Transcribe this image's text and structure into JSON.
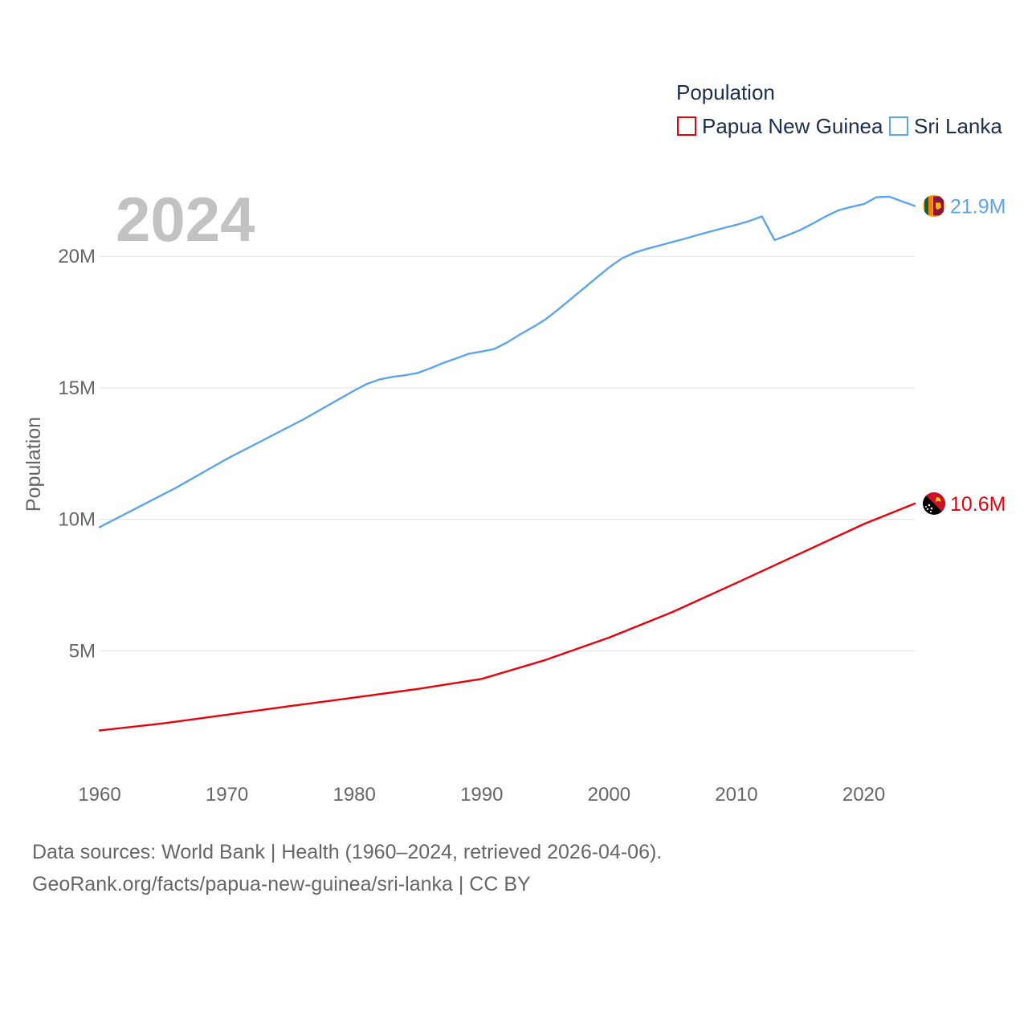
{
  "chart_data": {
    "type": "line",
    "title": "Population",
    "year_label": "2024",
    "xlabel": "",
    "ylabel": "Population",
    "xlim": [
      1960,
      2024
    ],
    "ylim": [
      0,
      23000000
    ],
    "x_ticks": [
      1960,
      1970,
      1980,
      1990,
      2000,
      2010,
      2020
    ],
    "x_tick_labels": [
      "1960",
      "1970",
      "1980",
      "1990",
      "2000",
      "2010",
      "2020"
    ],
    "y_ticks": [
      5000000,
      10000000,
      15000000,
      20000000
    ],
    "y_tick_labels": [
      "5M",
      "10M",
      "15M",
      "20M"
    ],
    "grid": true,
    "legend_position": "top-right",
    "series": [
      {
        "name": "Papua New Guinea",
        "color": "#e8000b",
        "end_label": "10.6M",
        "flag_icon": "papua-new-guinea-flag-icon",
        "x": [
          1960,
          1965,
          1970,
          1975,
          1980,
          1985,
          1990,
          1995,
          2000,
          2005,
          2010,
          2015,
          2020,
          2024
        ],
        "values": [
          1970000,
          2240000,
          2570000,
          2900000,
          3220000,
          3550000,
          3930000,
          4650000,
          5500000,
          6480000,
          7580000,
          8700000,
          9820000,
          10600000
        ]
      },
      {
        "name": "Sri Lanka",
        "color": "#5da5e8",
        "end_label": "21.9M",
        "flag_icon": "sri-lanka-flag-icon",
        "x": [
          1960,
          1962,
          1964,
          1966,
          1968,
          1970,
          1972,
          1974,
          1976,
          1978,
          1980,
          1981,
          1982,
          1983,
          1984,
          1985,
          1986,
          1987,
          1988,
          1989,
          1990,
          1991,
          1992,
          1993,
          1994,
          1995,
          1996,
          1997,
          1998,
          1999,
          2000,
          2001,
          2002,
          2003,
          2004,
          2005,
          2006,
          2007,
          2008,
          2009,
          2010,
          2011,
          2012,
          2013,
          2014,
          2015,
          2016,
          2017,
          2018,
          2019,
          2020,
          2021,
          2022,
          2023,
          2024
        ],
        "values": [
          9700000,
          10200000,
          10700000,
          11200000,
          11750000,
          12300000,
          12800000,
          13300000,
          13800000,
          14350000,
          14900000,
          15150000,
          15320000,
          15420000,
          15480000,
          15570000,
          15750000,
          15950000,
          16120000,
          16300000,
          16380000,
          16480000,
          16730000,
          17030000,
          17300000,
          17600000,
          17980000,
          18380000,
          18780000,
          19180000,
          19580000,
          19920000,
          20140000,
          20290000,
          20420000,
          20550000,
          20680000,
          20820000,
          20950000,
          21080000,
          21200000,
          21340000,
          21520000,
          20620000,
          20800000,
          21000000,
          21250000,
          21520000,
          21750000,
          21880000,
          21990000,
          22250000,
          22270000,
          22090000,
          21920000
        ]
      }
    ]
  },
  "source": {
    "line1": "Data sources: World Bank | Health (1960–2024, retrieved 2026-04-06).",
    "line2": "GeoRank.org/facts/papua-new-guinea/sri-lanka | CC BY"
  }
}
